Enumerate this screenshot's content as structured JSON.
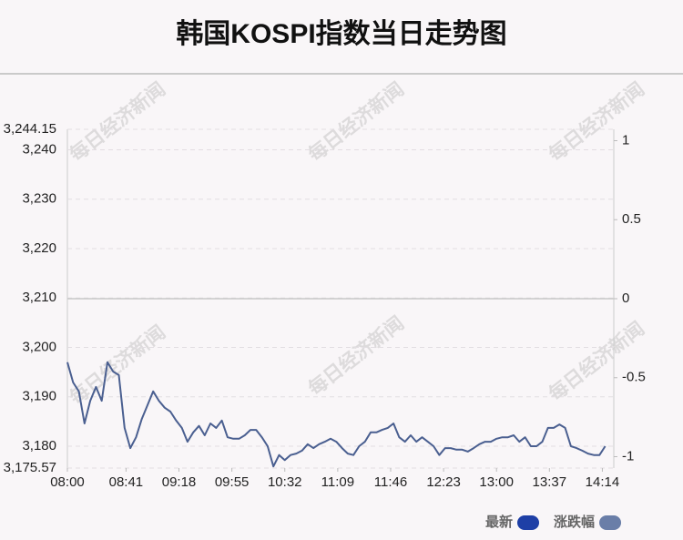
{
  "chart_data": {
    "type": "line",
    "title": "韩国KOSPI指数当日走势图",
    "watermark": "每日经济新闻",
    "x": [
      "08:00",
      "08:04",
      "08:08",
      "08:12",
      "08:16",
      "08:20",
      "08:24",
      "08:28",
      "08:32",
      "08:36",
      "08:40",
      "08:44",
      "08:48",
      "08:52",
      "08:56",
      "09:00",
      "09:04",
      "09:08",
      "09:12",
      "09:16",
      "09:20",
      "09:24",
      "09:28",
      "09:32",
      "09:36",
      "09:40",
      "09:44",
      "09:48",
      "09:52",
      "09:56",
      "10:00",
      "10:04",
      "10:08",
      "10:12",
      "10:16",
      "10:20",
      "10:24",
      "10:28",
      "10:32",
      "10:36",
      "10:40",
      "10:44",
      "10:48",
      "10:52",
      "10:56",
      "11:00",
      "11:04",
      "11:08",
      "11:12",
      "11:16",
      "11:20",
      "11:24",
      "11:28",
      "11:32",
      "11:36",
      "11:40",
      "11:44",
      "11:48",
      "11:52",
      "11:56",
      "12:00",
      "12:04",
      "12:08",
      "12:12",
      "12:16",
      "12:20",
      "12:24",
      "12:28",
      "12:32",
      "12:36",
      "12:40",
      "12:44",
      "12:48",
      "12:52",
      "12:56",
      "13:00",
      "13:04",
      "13:08",
      "13:12",
      "13:16",
      "13:20",
      "13:24",
      "13:28",
      "13:32",
      "13:36",
      "13:40",
      "13:44",
      "13:48",
      "13:52",
      "13:56",
      "14:00",
      "14:04",
      "14:08",
      "14:12",
      "14:16"
    ],
    "series": [
      {
        "name": "最新",
        "color": "#4a5f90",
        "values": [
          3197.0,
          3192.9,
          3191.1,
          3184.6,
          3189.2,
          3192.0,
          3189.2,
          3197.0,
          3195.1,
          3194.4,
          3183.7,
          3179.6,
          3181.8,
          3185.5,
          3188.3,
          3191.1,
          3189.2,
          3187.8,
          3187.0,
          3185.2,
          3183.7,
          3180.9,
          3182.8,
          3184.1,
          3182.2,
          3184.6,
          3183.7,
          3185.2,
          3181.8,
          3181.5,
          3181.5,
          3182.2,
          3183.3,
          3183.3,
          3181.8,
          3180.0,
          3175.9,
          3178.2,
          3177.2,
          3178.2,
          3178.5,
          3179.1,
          3180.4,
          3179.6,
          3180.4,
          3180.9,
          3181.5,
          3180.9,
          3179.6,
          3178.5,
          3178.2,
          3180.0,
          3180.9,
          3182.8,
          3182.8,
          3183.3,
          3183.7,
          3184.6,
          3181.8,
          3180.9,
          3182.2,
          3180.9,
          3181.8,
          3180.9,
          3180.0,
          3178.2,
          3179.6,
          3179.6,
          3179.3,
          3179.3,
          3178.9,
          3179.6,
          3180.4,
          3180.9,
          3180.9,
          3181.5,
          3181.8,
          3181.8,
          3182.2,
          3180.9,
          3181.8,
          3180.0,
          3180.0,
          3180.9,
          3183.7,
          3183.7,
          3184.4,
          3183.7,
          3180.0,
          3179.6,
          3179.1,
          3178.5,
          3178.2,
          3178.2,
          3180.0
        ]
      }
    ],
    "legend": [
      {
        "name": "最新",
        "color": "#1e3fa6"
      },
      {
        "name": "涨跌幅",
        "color": "#6a7ea8"
      }
    ],
    "xlim": [
      "08:00",
      "14:22"
    ],
    "xticks": [
      "08:00",
      "08:41",
      "09:18",
      "09:55",
      "10:32",
      "11:09",
      "11:46",
      "12:23",
      "13:00",
      "13:37",
      "14:14"
    ],
    "ylim": [
      3175.57,
      3244.15
    ],
    "yticks": [
      {
        "value": 3175.57,
        "label": "3,175.57"
      },
      {
        "value": 3180,
        "label": "3,180"
      },
      {
        "value": 3190,
        "label": "3,190"
      },
      {
        "value": 3200,
        "label": "3,200"
      },
      {
        "value": 3210,
        "label": "3,210"
      },
      {
        "value": 3220,
        "label": "3,220"
      },
      {
        "value": 3230,
        "label": "3,230"
      },
      {
        "value": 3240,
        "label": "3,240"
      },
      {
        "value": 3244.15,
        "label": "3,244.15"
      }
    ],
    "y2lim": [
      -1.072,
      1.072
    ],
    "y2ticks": [
      -1,
      -0.5,
      0,
      0.5,
      1
    ],
    "grid": true
  }
}
